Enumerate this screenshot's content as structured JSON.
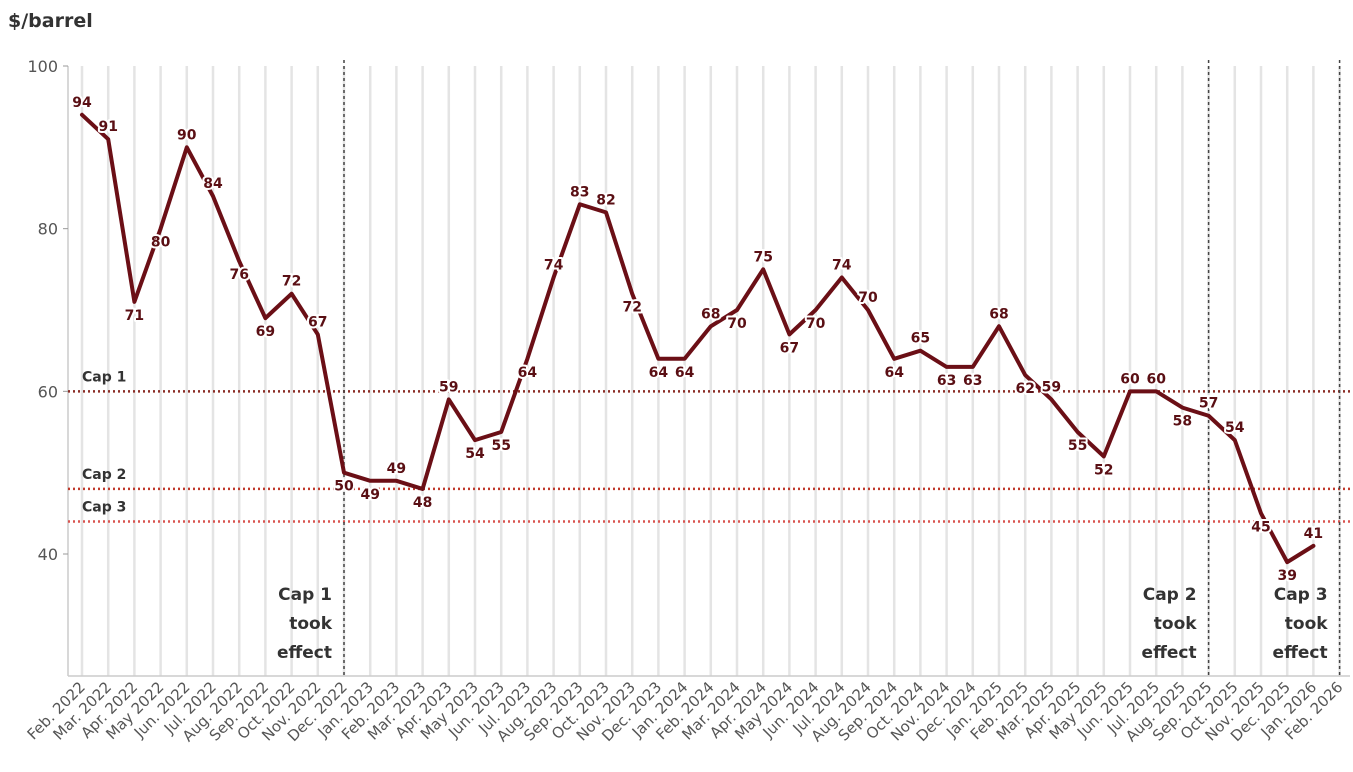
{
  "chart_data": {
    "type": "line",
    "ylabel": "$/barrel",
    "ylim": [
      25,
      100
    ],
    "yticks": [
      40,
      60,
      80,
      100
    ],
    "categories": [
      "Feb. 2022",
      "Mar. 2022",
      "Apr. 2022",
      "May 2022",
      "Jun. 2022",
      "Jul. 2022",
      "Aug. 2022",
      "Sep. 2022",
      "Oct. 2022",
      "Nov. 2022",
      "Dec. 2022",
      "Jan. 2023",
      "Feb. 2023",
      "Mar. 2023",
      "Apr. 2023",
      "May 2023",
      "Jun. 2023",
      "Jul. 2023",
      "Aug. 2023",
      "Sep. 2023",
      "Oct. 2023",
      "Nov. 2023",
      "Dec. 2023",
      "Jan. 2024",
      "Feb. 2024",
      "Mar. 2024",
      "Apr. 2024",
      "May 2024",
      "Jun. 2024",
      "Jul. 2024",
      "Aug. 2024",
      "Sep. 2024",
      "Oct. 2024",
      "Nov. 2024",
      "Dec. 2024",
      "Jan. 2025",
      "Feb. 2025",
      "Mar. 2025",
      "Apr. 2025",
      "May 2025",
      "Jun. 2025",
      "Jul. 2025",
      "Aug. 2025",
      "Sep. 2025",
      "Oct. 2025",
      "Nov. 2025",
      "Dec. 2025",
      "Jan. 2026",
      "Feb. 2026"
    ],
    "series": [
      {
        "values": [
          94,
          91,
          71,
          80,
          90,
          84,
          76,
          69,
          72,
          67,
          50,
          49,
          49,
          48,
          59,
          54,
          55,
          64,
          74,
          83,
          82,
          72,
          64,
          64,
          68,
          70,
          75,
          67,
          70,
          74,
          70,
          64,
          65,
          63,
          63,
          68,
          62,
          59,
          55,
          52,
          60,
          60,
          58,
          57,
          54,
          45,
          39,
          41,
          null
        ],
        "color": "#6b0f16"
      }
    ],
    "caps": [
      {
        "label": "Cap 1",
        "value": 60,
        "color": "#8b2c25"
      },
      {
        "label": "Cap 2",
        "value": 48,
        "color": "#c0392b"
      },
      {
        "label": "Cap 3",
        "value": 44,
        "color": "#d9534f"
      }
    ],
    "events": [
      {
        "category": "Dec. 2022",
        "lines": [
          "Cap 1",
          "took",
          "effect"
        ]
      },
      {
        "category": "Sep. 2025",
        "lines": [
          "Cap 2",
          "took",
          "effect"
        ]
      },
      {
        "category": "Feb. 2026",
        "lines": [
          "Cap 3",
          "took",
          "effect"
        ]
      }
    ],
    "grid": true
  }
}
